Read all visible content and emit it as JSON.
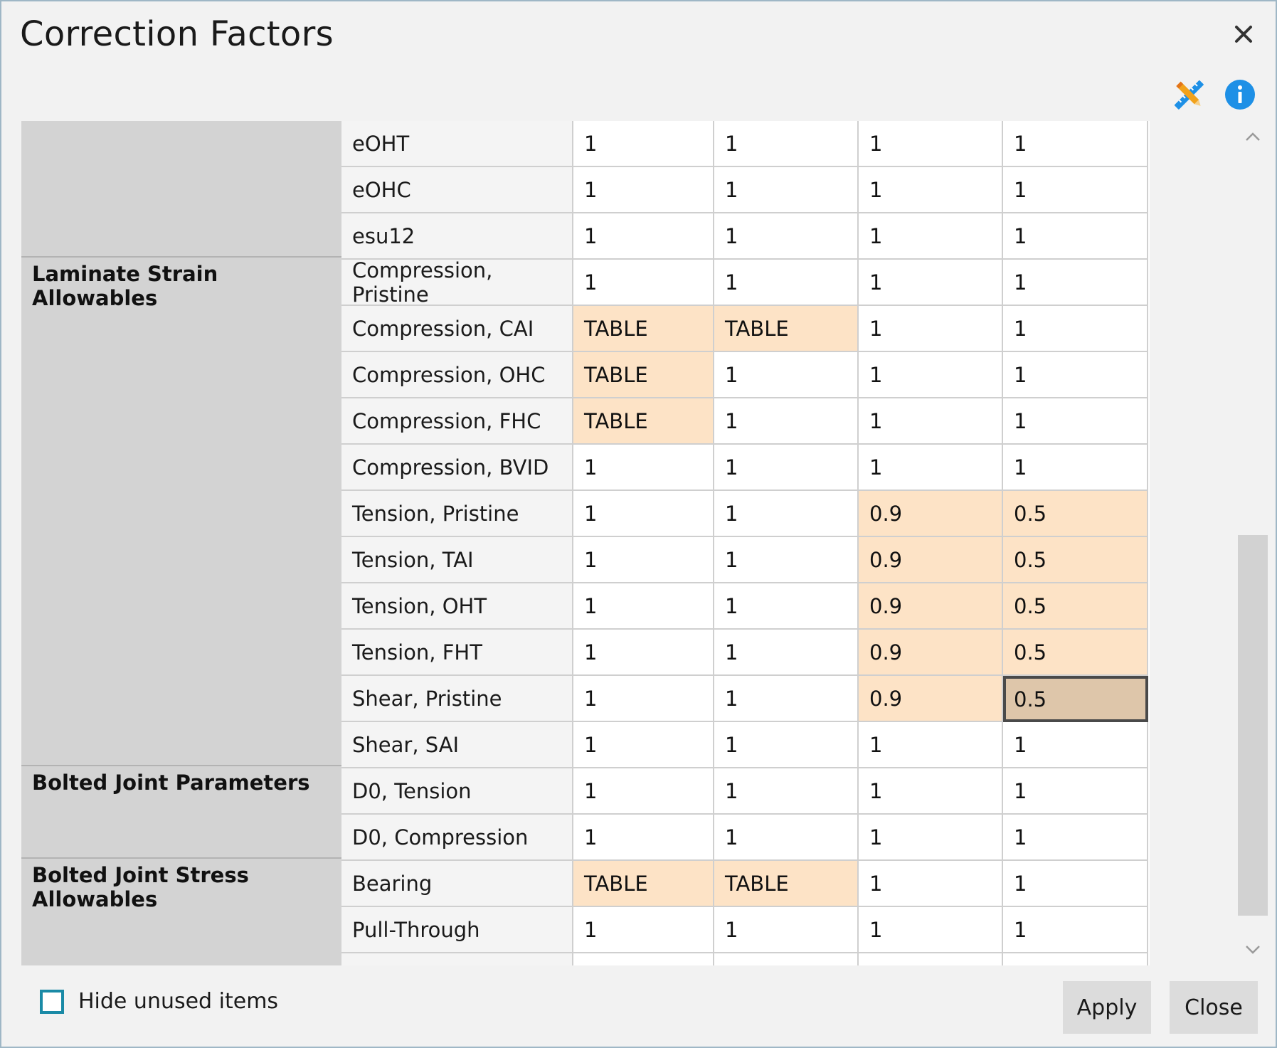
{
  "dialog": {
    "title": "Correction Factors",
    "icons": [
      "close-icon",
      "pencil-ruler-icon",
      "info-icon"
    ],
    "colors": {
      "highlight": "#fde3c6",
      "selected": "#dec6aa",
      "group_background": "#d3d3d3",
      "checkbox_border": "#1a8aa6",
      "info_blue": "#1e90e6"
    }
  },
  "grid": {
    "groups": [
      {
        "label": ""
      },
      {
        "label": "Laminate Strain Allowables"
      },
      {
        "label": "Bolted Joint Parameters"
      },
      {
        "label": "Bolted Joint Stress Allowables"
      }
    ],
    "rows": [
      {
        "name": "eOHT",
        "values": [
          "1",
          "1",
          "1",
          "1"
        ],
        "highlight": [
          false,
          false,
          false,
          false
        ]
      },
      {
        "name": "eOHC",
        "values": [
          "1",
          "1",
          "1",
          "1"
        ],
        "highlight": [
          false,
          false,
          false,
          false
        ]
      },
      {
        "name": "esu12",
        "values": [
          "1",
          "1",
          "1",
          "1"
        ],
        "highlight": [
          false,
          false,
          false,
          false
        ]
      },
      {
        "name": "Compression, Pristine",
        "values": [
          "1",
          "1",
          "1",
          "1"
        ],
        "highlight": [
          false,
          false,
          false,
          false
        ]
      },
      {
        "name": "Compression, CAI",
        "values": [
          "TABLE",
          "TABLE",
          "1",
          "1"
        ],
        "highlight": [
          true,
          true,
          false,
          false
        ]
      },
      {
        "name": "Compression, OHC",
        "values": [
          "TABLE",
          "1",
          "1",
          "1"
        ],
        "highlight": [
          true,
          false,
          false,
          false
        ]
      },
      {
        "name": "Compression, FHC",
        "values": [
          "TABLE",
          "1",
          "1",
          "1"
        ],
        "highlight": [
          true,
          false,
          false,
          false
        ]
      },
      {
        "name": "Compression, BVID",
        "values": [
          "1",
          "1",
          "1",
          "1"
        ],
        "highlight": [
          false,
          false,
          false,
          false
        ]
      },
      {
        "name": "Tension, Pristine",
        "values": [
          "1",
          "1",
          "0.9",
          "0.5"
        ],
        "highlight": [
          false,
          false,
          true,
          true
        ]
      },
      {
        "name": "Tension, TAI",
        "values": [
          "1",
          "1",
          "0.9",
          "0.5"
        ],
        "highlight": [
          false,
          false,
          true,
          true
        ]
      },
      {
        "name": "Tension, OHT",
        "values": [
          "1",
          "1",
          "0.9",
          "0.5"
        ],
        "highlight": [
          false,
          false,
          true,
          true
        ]
      },
      {
        "name": "Tension, FHT",
        "values": [
          "1",
          "1",
          "0.9",
          "0.5"
        ],
        "highlight": [
          false,
          false,
          true,
          true
        ]
      },
      {
        "name": "Shear, Pristine",
        "values": [
          "1",
          "1",
          "0.9",
          "0.5"
        ],
        "highlight": [
          false,
          false,
          true,
          true
        ],
        "selected_col": 3
      },
      {
        "name": "Shear, SAI",
        "values": [
          "1",
          "1",
          "1",
          "1"
        ],
        "highlight": [
          false,
          false,
          false,
          false
        ]
      },
      {
        "name": "D0, Tension",
        "values": [
          "1",
          "1",
          "1",
          "1"
        ],
        "highlight": [
          false,
          false,
          false,
          false
        ]
      },
      {
        "name": "D0, Compression",
        "values": [
          "1",
          "1",
          "1",
          "1"
        ],
        "highlight": [
          false,
          false,
          false,
          false
        ]
      },
      {
        "name": "Bearing",
        "values": [
          "TABLE",
          "TABLE",
          "1",
          "1"
        ],
        "highlight": [
          true,
          true,
          false,
          false
        ]
      },
      {
        "name": "Pull-Through",
        "values": [
          "1",
          "1",
          "1",
          "1"
        ],
        "highlight": [
          false,
          false,
          false,
          false
        ]
      },
      {
        "name": "",
        "values": [
          "",
          "",
          "",
          ""
        ],
        "highlight": [
          false,
          false,
          false,
          false
        ]
      }
    ]
  },
  "footer": {
    "hide_unused_label": "Hide unused items",
    "hide_unused_checked": false,
    "apply_label": "Apply",
    "close_label": "Close"
  }
}
